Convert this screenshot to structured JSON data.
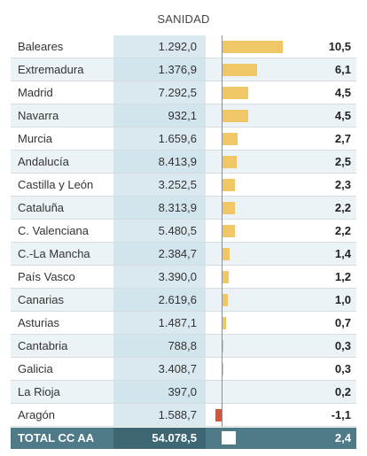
{
  "chart_data": {
    "type": "bar",
    "title": "SANIDAD",
    "rows": [
      {
        "region": "Baleares",
        "value": "1.292,0",
        "pct": "10,5",
        "pct_num": 10.5
      },
      {
        "region": "Extremadura",
        "value": "1.376,9",
        "pct": "6,1",
        "pct_num": 6.1
      },
      {
        "region": "Madrid",
        "value": "7.292,5",
        "pct": "4,5",
        "pct_num": 4.5
      },
      {
        "region": "Navarra",
        "value": "932,1",
        "pct": "4,5",
        "pct_num": 4.5
      },
      {
        "region": "Murcia",
        "value": "1.659,6",
        "pct": "2,7",
        "pct_num": 2.7
      },
      {
        "region": "Andalucía",
        "value": "8.413,9",
        "pct": "2,5",
        "pct_num": 2.5
      },
      {
        "region": "Castilla y León",
        "value": "3.252,5",
        "pct": "2,3",
        "pct_num": 2.3
      },
      {
        "region": "Cataluña",
        "value": "8.313,9",
        "pct": "2,2",
        "pct_num": 2.2
      },
      {
        "region": "C. Valenciana",
        "value": "5.480,5",
        "pct": "2,2",
        "pct_num": 2.2
      },
      {
        "region": "C.-La Mancha",
        "value": "2.384,7",
        "pct": "1,4",
        "pct_num": 1.4
      },
      {
        "region": "País Vasco",
        "value": "3.390,0",
        "pct": "1,2",
        "pct_num": 1.2
      },
      {
        "region": "Canarias",
        "value": "2.619,6",
        "pct": "1,0",
        "pct_num": 1.0
      },
      {
        "region": "Asturias",
        "value": "1.487,1",
        "pct": "0,7",
        "pct_num": 0.7
      },
      {
        "region": "Cantabria",
        "value": "788,8",
        "pct": "0,3",
        "pct_num": 0.3
      },
      {
        "region": "Galicia",
        "value": "3.408,7",
        "pct": "0,3",
        "pct_num": 0.3
      },
      {
        "region": "La Rioja",
        "value": "397,0",
        "pct": "0,2",
        "pct_num": 0.2
      },
      {
        "region": "Aragón",
        "value": "1.588,7",
        "pct": "-1,1",
        "pct_num": -1.1
      }
    ],
    "total": {
      "region": "TOTAL CC AA",
      "value": "54.078,5",
      "pct": "2,4",
      "pct_num": 2.4
    },
    "colors": {
      "positive": "#f0c766",
      "negative": "#d9533b",
      "total_bar": "#ffffff"
    }
  }
}
